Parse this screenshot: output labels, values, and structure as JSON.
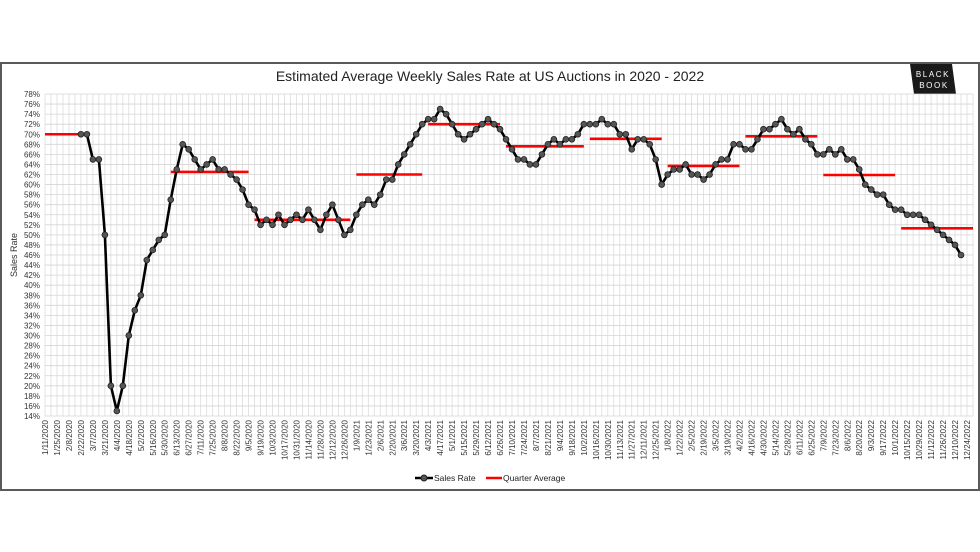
{
  "chart_data": {
    "type": "line",
    "title": "Estimated Average Weekly Sales Rate at US Auctions in 2020 - 2022",
    "xlabel": "",
    "ylabel": "Sales Rate",
    "ylim": [
      14,
      78
    ],
    "ytick_step": 2,
    "yticks": [
      "14%",
      "16%",
      "18%",
      "20%",
      "22%",
      "24%",
      "26%",
      "28%",
      "30%",
      "32%",
      "34%",
      "36%",
      "38%",
      "40%",
      "42%",
      "44%",
      "46%",
      "48%",
      "50%",
      "52%",
      "54%",
      "56%",
      "58%",
      "60%",
      "62%",
      "64%",
      "66%",
      "68%",
      "70%",
      "72%",
      "74%",
      "76%",
      "78%"
    ],
    "grid": true,
    "legend_position": "bottom",
    "x_category_count": 156,
    "x_tick_every": 2,
    "xticks": [
      "1/11/2020",
      "1/25/2020",
      "2/8/2020",
      "2/22/2020",
      "3/7/2020",
      "3/21/2020",
      "4/4/2020",
      "4/18/2020",
      "5/2/2020",
      "5/16/2020",
      "5/30/2020",
      "6/13/2020",
      "6/27/2020",
      "7/11/2020",
      "7/25/2020",
      "8/8/2020",
      "8/22/2020",
      "9/5/2020",
      "9/19/2020",
      "10/3/2020",
      "10/17/2020",
      "10/31/2020",
      "11/14/2020",
      "11/28/2020",
      "12/12/2020",
      "12/26/2020",
      "1/9/2021",
      "1/23/2021",
      "2/6/2021",
      "2/20/2021",
      "3/6/2021",
      "3/20/2021",
      "4/3/2021",
      "4/17/2021",
      "5/1/2021",
      "5/15/2021",
      "5/29/2021",
      "6/12/2021",
      "6/26/2021",
      "7/10/2021",
      "7/24/2021",
      "8/7/2021",
      "8/21/2021",
      "9/4/2021",
      "9/18/2021",
      "10/2/2021",
      "10/16/2021",
      "10/30/2021",
      "11/13/2021",
      "11/27/2021",
      "12/11/2021",
      "12/25/2021",
      "1/8/2022",
      "1/22/2022",
      "2/5/2022",
      "2/19/2022",
      "3/5/2022",
      "3/19/2022",
      "4/2/2022",
      "4/16/2022",
      "4/30/2022",
      "5/14/2022",
      "5/28/2022",
      "6/11/2022",
      "6/25/2022",
      "7/9/2022",
      "7/23/2022",
      "8/6/2022",
      "8/20/2022",
      "9/3/2022",
      "9/17/2022",
      "10/1/2022",
      "10/15/2022",
      "10/29/2022",
      "11/12/2022",
      "11/26/2022",
      "12/10/2022",
      "12/24/2022"
    ],
    "series": [
      {
        "name": "Sales Rate",
        "color": "#000000",
        "marker_color": "#555555",
        "values": [
          null,
          null,
          null,
          null,
          null,
          null,
          70,
          70,
          65,
          65,
          50,
          20,
          15,
          20,
          30,
          35,
          38,
          45,
          47,
          49,
          50,
          57,
          63,
          68,
          67,
          65,
          63,
          64,
          65,
          63,
          63,
          62,
          61,
          59,
          56,
          55,
          52,
          53,
          52,
          54,
          52,
          53,
          54,
          53,
          55,
          53,
          51,
          54,
          56,
          53,
          50,
          51,
          54,
          56,
          57,
          56,
          58,
          61,
          61,
          64,
          66,
          68,
          70,
          72,
          73,
          73,
          75,
          74,
          72,
          70,
          69,
          70,
          71,
          72,
          73,
          72,
          71,
          69,
          67,
          65,
          65,
          64,
          64,
          66,
          68,
          69,
          68,
          69,
          69,
          70,
          72,
          72,
          72,
          73,
          72,
          72,
          70,
          70,
          67,
          69,
          69,
          68,
          65,
          60,
          62,
          63,
          63,
          64,
          62,
          62,
          61,
          62,
          64,
          65,
          65,
          68,
          68,
          67,
          67,
          69,
          71,
          71,
          72,
          73,
          71,
          70,
          71,
          69,
          68,
          66,
          66,
          67,
          66,
          67,
          65,
          65,
          63,
          60,
          59,
          58,
          58,
          56,
          55,
          55,
          54,
          54,
          54,
          53,
          52,
          51,
          50,
          49,
          48,
          46,
          null,
          null
        ]
      },
      {
        "name": "Quarter Average",
        "color": "#ff0000",
        "segments": [
          {
            "start": 0,
            "end": 7,
            "value": 70
          },
          {
            "start": 21,
            "end": 34,
            "value": 62.5
          },
          {
            "start": 35,
            "end": 51,
            "value": 53
          },
          {
            "start": 52,
            "end": 63,
            "value": 62
          },
          {
            "start": 64,
            "end": 76,
            "value": 72
          },
          {
            "start": 77,
            "end": 90,
            "value": 67.6
          },
          {
            "start": 91,
            "end": 103,
            "value": 69.1
          },
          {
            "start": 104,
            "end": 116,
            "value": 63.7
          },
          {
            "start": 117,
            "end": 129,
            "value": 69.6
          },
          {
            "start": 130,
            "end": 142,
            "value": 61.9
          },
          {
            "start": 143,
            "end": 155,
            "value": 51.3
          }
        ]
      }
    ]
  },
  "logo": {
    "line1": "BLACK",
    "line2": "BOOK"
  }
}
